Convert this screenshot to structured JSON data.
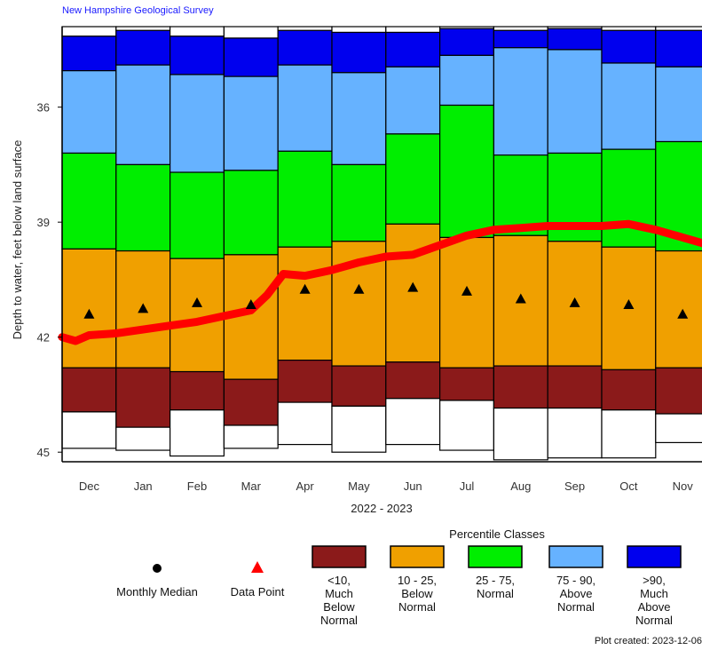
{
  "header": {
    "source": "New Hampshire Geological Survey"
  },
  "chart_data": {
    "type": "bar",
    "title": "",
    "xlabel": "2022 - 2023",
    "ylabel": "Depth to water, feet below land surface",
    "ylim": [
      33.9,
      45.25
    ],
    "y_inverted": true,
    "y_ticks": [
      "36",
      "39",
      "42",
      "45"
    ],
    "categories": [
      "Dec",
      "Jan",
      "Feb",
      "Mar",
      "Apr",
      "May",
      "Jun",
      "Jul",
      "Aug",
      "Sep",
      "Oct",
      "Nov"
    ],
    "percentile_bands": [
      {
        "name": "min",
        "values": [
          34.15,
          34.0,
          34.15,
          34.2,
          34.0,
          34.05,
          34.05,
          33.95,
          34.0,
          33.95,
          34.0,
          34.0
        ]
      },
      {
        "name": "p90",
        "values": [
          35.05,
          34.9,
          35.15,
          35.2,
          34.9,
          35.1,
          34.95,
          34.65,
          34.45,
          34.5,
          34.85,
          34.95
        ]
      },
      {
        "name": "p75",
        "values": [
          37.2,
          37.5,
          37.7,
          37.65,
          37.15,
          37.5,
          36.7,
          35.95,
          37.25,
          37.2,
          37.1,
          36.9
        ]
      },
      {
        "name": "p25",
        "values": [
          39.7,
          39.75,
          39.95,
          39.85,
          39.65,
          39.5,
          39.05,
          39.4,
          39.35,
          39.5,
          39.65,
          39.75
        ]
      },
      {
        "name": "p10",
        "values": [
          42.8,
          42.8,
          42.9,
          43.1,
          42.6,
          42.75,
          42.65,
          42.8,
          42.75,
          42.75,
          42.85,
          42.8
        ]
      },
      {
        "name": "p5",
        "values": [
          43.95,
          44.35,
          43.9,
          44.3,
          43.7,
          43.8,
          43.6,
          43.65,
          43.85,
          43.85,
          43.9,
          44.0
        ]
      },
      {
        "name": "max",
        "values": [
          44.9,
          44.95,
          45.1,
          44.9,
          44.8,
          45.0,
          44.8,
          44.95,
          45.2,
          45.15,
          45.15,
          44.75
        ]
      }
    ],
    "monthly_median": [
      41.4,
      41.25,
      41.1,
      41.15,
      40.75,
      40.75,
      40.7,
      40.8,
      41.0,
      41.1,
      41.15,
      41.4
    ],
    "data_points": {
      "x_month_index": [
        -0.5,
        -0.25,
        0,
        0.5,
        1,
        1.5,
        2,
        2.5,
        3,
        3.3,
        3.6,
        4,
        4.5,
        5,
        5.5,
        6,
        6.5,
        7,
        7.5,
        8,
        8.5,
        9,
        9.5,
        10,
        10.5,
        11,
        11.5
      ],
      "y": [
        42.0,
        42.1,
        41.95,
        41.9,
        41.8,
        41.7,
        41.6,
        41.45,
        41.3,
        40.9,
        40.35,
        40.4,
        40.25,
        40.05,
        39.9,
        39.85,
        39.6,
        39.35,
        39.2,
        39.15,
        39.1,
        39.1,
        39.1,
        39.05,
        39.2,
        39.4,
        39.6
      ]
    },
    "grid": false,
    "legend": {
      "position": "bottom",
      "title": "Percentile Classes",
      "median_label": "Monthly Median",
      "data_label": "Data Point",
      "classes": [
        {
          "label": "<10,\nMuch\nBelow\nNormal",
          "color": "#8b1a1a"
        },
        {
          "label": "10 - 25,\nBelow\nNormal",
          "color": "#f0a000"
        },
        {
          "label": "25 - 75,\nNormal",
          "color": "#00ee00"
        },
        {
          "label": "75 - 90,\nAbove\nNormal",
          "color": "#66b2ff"
        },
        {
          "label": ">90,\nMuch\nAbove\nNormal",
          "color": "#0000ee"
        }
      ]
    },
    "colors": {
      "min_band": "#ffffff",
      "data_line": "#ff0000",
      "marker": "#000000"
    }
  },
  "footer": {
    "created": "Plot created: 2023-12-06"
  }
}
